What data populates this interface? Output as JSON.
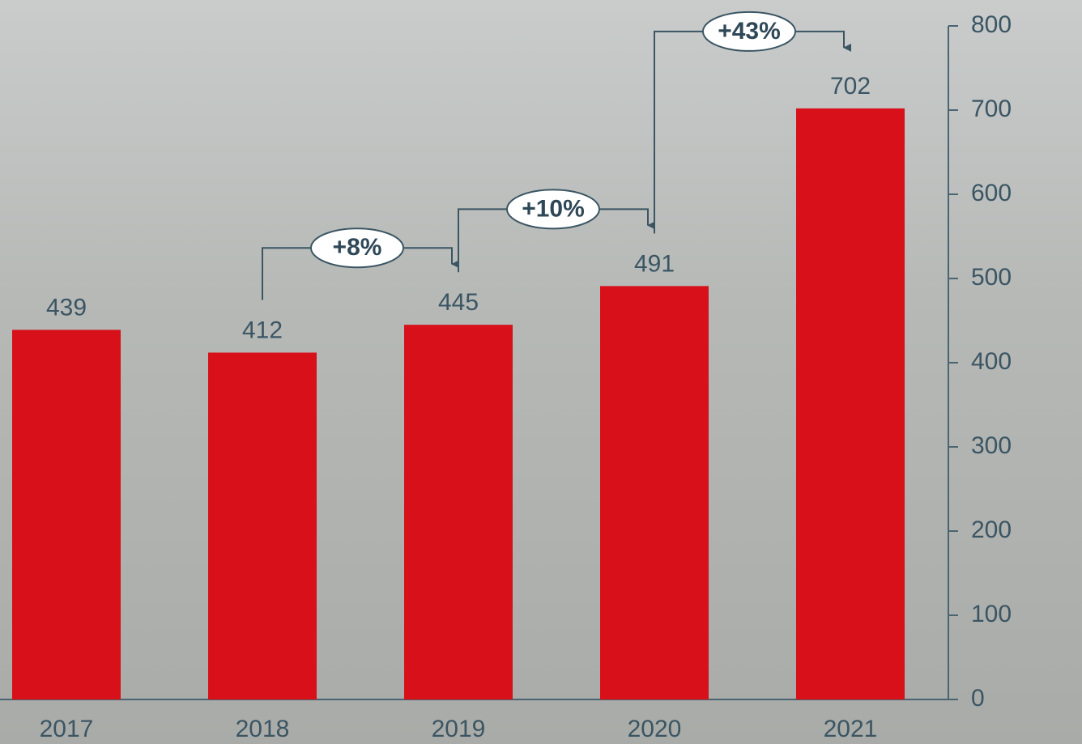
{
  "chart_data": {
    "type": "bar",
    "categories": [
      "2017",
      "2018",
      "2019",
      "2020",
      "2021"
    ],
    "values": [
      439,
      412,
      445,
      491,
      702
    ],
    "color": "#d7101a",
    "ylim": [
      0,
      800
    ],
    "yticks": [
      0,
      100,
      200,
      300,
      400,
      500,
      600,
      700,
      800
    ],
    "axis_side": "right",
    "annotations": [
      "+8%",
      "+10%",
      "+43%"
    ]
  }
}
